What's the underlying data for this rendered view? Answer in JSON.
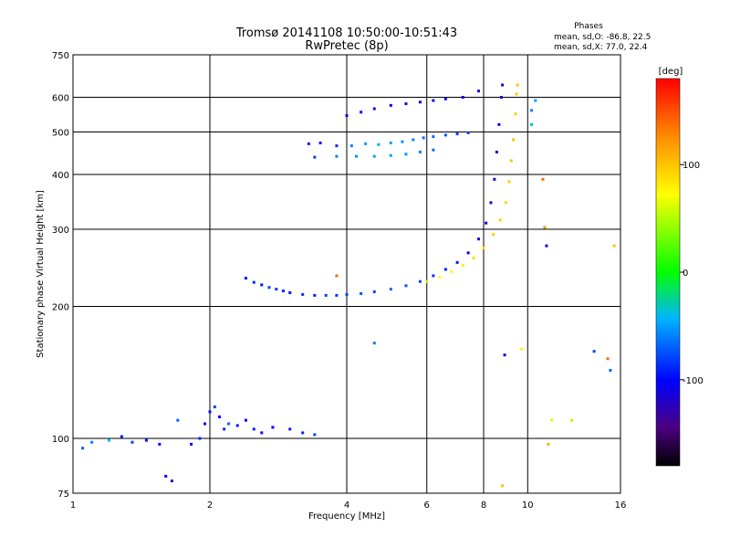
{
  "header": {
    "title_line1": "Tromsø 20141108 10:50:00-10:51:43",
    "title_line2": "RwPretec (8p)",
    "phases_title": "Phases",
    "phases_o": "mean, sd,O: -86.8, 22.5",
    "phases_x": "mean, sd,X: 77.0, 22.4"
  },
  "chart_data": {
    "type": "scatter",
    "title": "Tromsø 20141108 10:50:00-10:51:43",
    "subtitle": "RwPretec (8p)",
    "xlabel": "Frequency [MHz]",
    "ylabel": "Stationary phase Virtual Height [km]",
    "xscale": "log",
    "yscale": "log",
    "xlim": [
      1,
      16
    ],
    "ylim": [
      75,
      750
    ],
    "x_ticks": [
      1,
      2,
      4,
      6,
      8,
      10,
      16
    ],
    "y_ticks": [
      75,
      100,
      200,
      300,
      400,
      500,
      600,
      750
    ],
    "grid": true,
    "colorbar": {
      "label": "[deg]",
      "range": [
        -180,
        180
      ],
      "ticks": [
        100,
        0,
        -100
      ]
    },
    "series": [
      {
        "points": [
          [
            1.05,
            95,
            -70
          ],
          [
            1.1,
            98,
            -60
          ],
          [
            1.2,
            99,
            -40
          ],
          [
            1.28,
            101,
            -90
          ],
          [
            1.35,
            98,
            -80
          ],
          [
            1.45,
            99,
            -95
          ],
          [
            1.55,
            97,
            -100
          ],
          [
            1.6,
            82,
            -110
          ],
          [
            1.65,
            80,
            -120
          ],
          [
            1.7,
            110,
            -70
          ],
          [
            1.82,
            97,
            -100
          ],
          [
            1.9,
            100,
            -90
          ],
          [
            1.95,
            108,
            -100
          ],
          [
            2.0,
            115,
            -95
          ],
          [
            2.05,
            118,
            -80
          ],
          [
            2.1,
            112,
            -100
          ],
          [
            2.15,
            105,
            -90
          ],
          [
            2.2,
            108,
            -70
          ],
          [
            2.3,
            107,
            -95
          ],
          [
            2.4,
            110,
            -100
          ],
          [
            2.5,
            105,
            -90
          ],
          [
            2.6,
            103,
            -95
          ],
          [
            2.75,
            106,
            -100
          ],
          [
            3.0,
            105,
            -95
          ],
          [
            3.2,
            103,
            -90
          ],
          [
            3.4,
            102,
            -80
          ]
        ]
      },
      {
        "points": [
          [
            2.4,
            232,
            -95
          ],
          [
            2.5,
            227,
            -90
          ],
          [
            2.6,
            224,
            -95
          ],
          [
            2.7,
            221,
            -80
          ],
          [
            2.8,
            219,
            -85
          ],
          [
            2.9,
            217,
            -90
          ],
          [
            3.0,
            215,
            -95
          ],
          [
            3.2,
            213,
            -85
          ],
          [
            3.4,
            212,
            -90
          ],
          [
            3.6,
            212,
            -80
          ],
          [
            3.8,
            212,
            -85
          ],
          [
            4.0,
            213,
            -80
          ],
          [
            4.3,
            214,
            -75
          ],
          [
            4.6,
            216,
            -80
          ],
          [
            5.0,
            219,
            -70
          ],
          [
            5.4,
            223,
            -75
          ],
          [
            5.8,
            228,
            -80
          ],
          [
            6.2,
            235,
            -85
          ],
          [
            6.6,
            243,
            -90
          ],
          [
            7.0,
            252,
            -95
          ],
          [
            7.4,
            265,
            -100
          ],
          [
            7.8,
            285,
            -105
          ],
          [
            8.1,
            310,
            -110
          ],
          [
            8.3,
            345,
            -110
          ],
          [
            8.45,
            390,
            -115
          ],
          [
            8.55,
            450,
            -115
          ],
          [
            8.65,
            520,
            -115
          ],
          [
            8.75,
            600,
            -115
          ],
          [
            8.8,
            640,
            -115
          ]
        ]
      },
      {
        "points": [
          [
            6.0,
            228,
            60
          ],
          [
            6.4,
            233,
            70
          ],
          [
            6.8,
            240,
            75
          ],
          [
            7.2,
            248,
            80
          ],
          [
            7.6,
            258,
            85
          ],
          [
            8.0,
            272,
            90
          ],
          [
            8.4,
            292,
            95
          ],
          [
            8.7,
            315,
            95
          ],
          [
            8.95,
            345,
            90
          ],
          [
            9.1,
            385,
            95
          ],
          [
            9.2,
            430,
            100
          ],
          [
            9.3,
            480,
            100
          ],
          [
            9.4,
            550,
            95
          ],
          [
            9.45,
            610,
            100
          ],
          [
            9.5,
            640,
            100
          ]
        ]
      },
      {
        "points": [
          [
            3.3,
            470,
            -90
          ],
          [
            3.5,
            472,
            -95
          ],
          [
            3.8,
            465,
            -90
          ],
          [
            4.1,
            465,
            -60
          ],
          [
            4.4,
            470,
            -50
          ],
          [
            4.7,
            468,
            -45
          ],
          [
            5.0,
            472,
            -50
          ],
          [
            5.3,
            475,
            -55
          ],
          [
            5.6,
            480,
            -60
          ],
          [
            5.9,
            485,
            -65
          ],
          [
            6.2,
            488,
            -70
          ],
          [
            6.6,
            492,
            -75
          ],
          [
            7.0,
            495,
            -80
          ],
          [
            7.4,
            498,
            -85
          ],
          [
            3.4,
            438,
            -80
          ],
          [
            3.8,
            440,
            -60
          ],
          [
            4.2,
            440,
            -55
          ],
          [
            4.6,
            440,
            -50
          ],
          [
            5.0,
            442,
            -50
          ],
          [
            5.4,
            445,
            -55
          ],
          [
            5.8,
            450,
            -60
          ],
          [
            6.2,
            455,
            -65
          ]
        ]
      },
      {
        "points": [
          [
            4.0,
            545,
            -110
          ],
          [
            4.3,
            555,
            -105
          ],
          [
            4.6,
            565,
            -110
          ],
          [
            5.0,
            575,
            -100
          ],
          [
            5.4,
            580,
            -110
          ],
          [
            5.8,
            585,
            -105
          ],
          [
            6.2,
            590,
            -110
          ],
          [
            6.6,
            595,
            -100
          ],
          [
            7.2,
            600,
            -105
          ],
          [
            7.8,
            620,
            -100
          ],
          [
            10.2,
            560,
            -60
          ],
          [
            10.4,
            590,
            -50
          ],
          [
            10.2,
            520,
            -40
          ]
        ]
      },
      {
        "points": [
          [
            4.6,
            165,
            -60
          ],
          [
            8.9,
            155,
            -110
          ],
          [
            9.7,
            160,
            80
          ],
          [
            11.3,
            110,
            60
          ],
          [
            12.5,
            110,
            50
          ],
          [
            14.0,
            158,
            -80
          ],
          [
            15.0,
            152,
            140
          ],
          [
            15.2,
            143,
            -70
          ],
          [
            15.5,
            275,
            100
          ],
          [
            11.1,
            97,
            110
          ],
          [
            8.8,
            78,
            100
          ],
          [
            10.9,
            303,
            120
          ],
          [
            11.0,
            275,
            -100
          ],
          [
            10.8,
            390,
            140
          ],
          [
            3.8,
            235,
            140
          ]
        ]
      }
    ]
  }
}
